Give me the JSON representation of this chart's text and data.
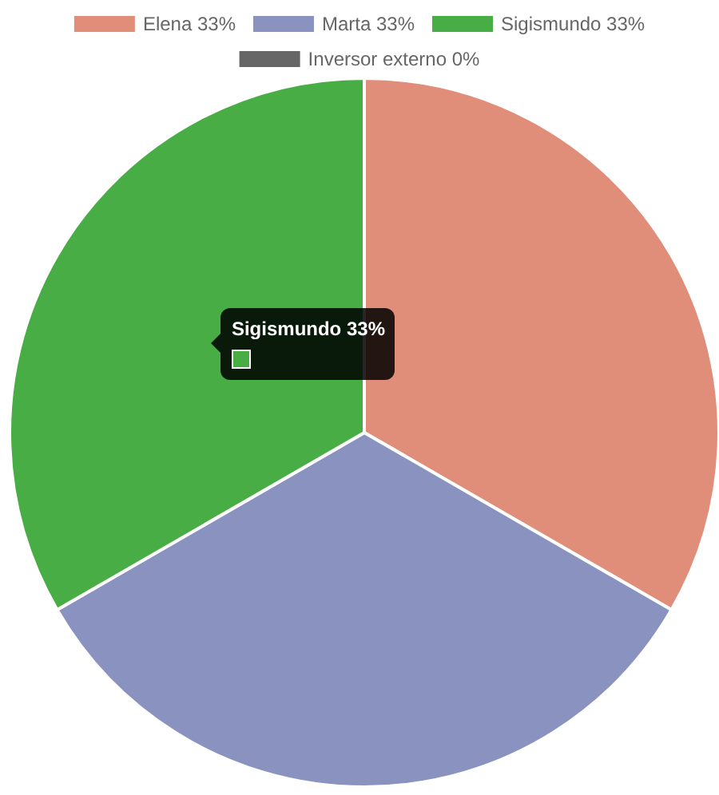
{
  "chart_data": {
    "type": "pie",
    "categories": [
      "Elena",
      "Marta",
      "Sigismundo",
      "Inversor externo"
    ],
    "values": [
      33.33,
      33.33,
      33.33,
      0
    ],
    "colors": [
      "#e08d7a",
      "#8a92bf",
      "#47ad44",
      "#666666"
    ],
    "value_labels": [
      "33%",
      "33%",
      "33%",
      "0%"
    ],
    "legend": "top",
    "annotations": [
      "Sigismundo 33%"
    ]
  }
}
